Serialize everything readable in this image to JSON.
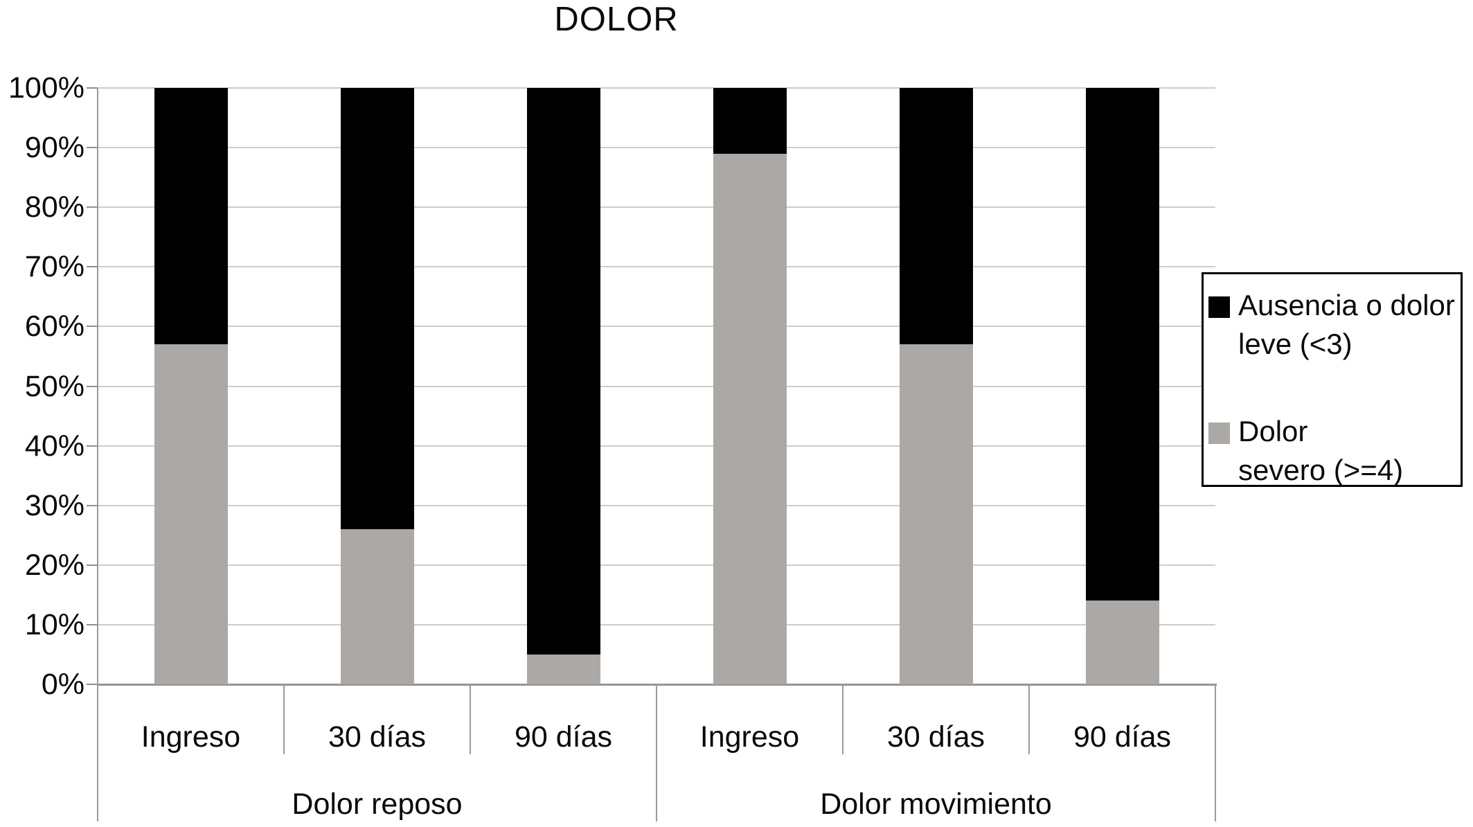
{
  "title": "DOLOR",
  "legend": {
    "items": [
      {
        "line1": "Ausencia o dolor",
        "line2": "leve (<3)",
        "color": "#000000"
      },
      {
        "line1": "Dolor",
        "line2": "severo (>=4)",
        "color": "#aba8a6"
      }
    ]
  },
  "chart_data": {
    "type": "bar",
    "stacked": true,
    "title": "DOLOR",
    "groups": [
      "Dolor reposo",
      "Dolor movimiento"
    ],
    "categories": [
      "Ingreso",
      "30 días",
      "90 días",
      "Ingreso",
      "30 días",
      "90 días"
    ],
    "series": [
      {
        "name": "Dolor severo (>=4)",
        "color": "#aba8a6",
        "values": [
          57,
          26,
          5,
          89,
          57,
          14
        ]
      },
      {
        "name": "Ausencia o dolor leve (<3)",
        "color": "#000000",
        "values": [
          43,
          74,
          95,
          11,
          43,
          86
        ]
      }
    ],
    "y_ticks": [
      "0%",
      "10%",
      "20%",
      "30%",
      "40%",
      "50%",
      "60%",
      "70%",
      "80%",
      "90%",
      "100%"
    ],
    "ylim": [
      0,
      100
    ],
    "unit": "%",
    "grid": true,
    "legend_position": "right"
  },
  "colors": {
    "bar_black": "#000000",
    "bar_gray": "#aba8a6",
    "gridline": "#cccccc",
    "axis": "#9a9a9a"
  }
}
